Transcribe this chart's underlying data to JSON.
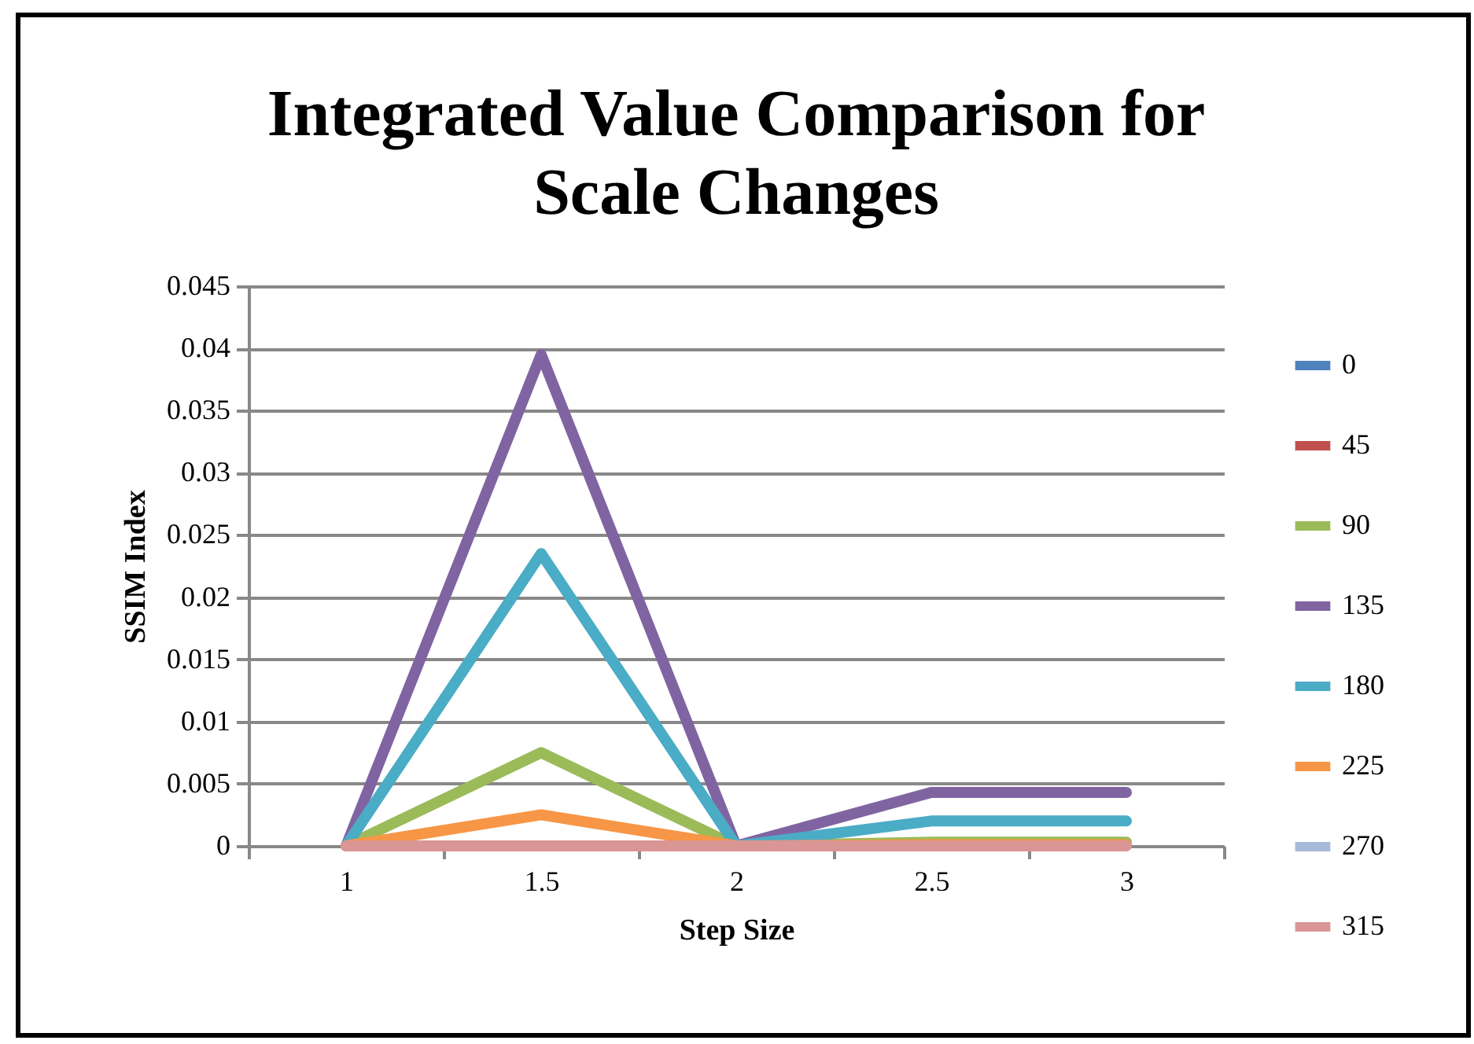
{
  "chart_data": {
    "type": "line",
    "title": "Integrated Value Comparison for Scale Changes",
    "xlabel": "Step Size",
    "ylabel": "SSIM Index",
    "categories": [
      "1",
      "1.5",
      "2",
      "2.5",
      "3"
    ],
    "ylim": [
      0,
      0.045
    ],
    "yticks": [
      0,
      0.005,
      0.01,
      0.015,
      0.02,
      0.025,
      0.03,
      0.035,
      0.04,
      0.045
    ],
    "grid": "y",
    "legend": "right",
    "marker": "none",
    "line_style": "solid",
    "series": [
      {
        "name": "0",
        "color": "#4f81bd",
        "values": [
          null,
          null,
          null,
          null,
          null
        ]
      },
      {
        "name": "45",
        "color": "#c0504d",
        "values": [
          null,
          null,
          null,
          null,
          null
        ]
      },
      {
        "name": "90",
        "color": "#9bbb59",
        "values": [
          0,
          0.0075,
          0,
          0.0003,
          0.0003
        ]
      },
      {
        "name": "135",
        "color": "#8064a2",
        "values": [
          0,
          0.0395,
          0,
          0.0043,
          0.0043
        ]
      },
      {
        "name": "180",
        "color": "#4bacc6",
        "values": [
          0,
          0.0235,
          0,
          0.002,
          0.002
        ]
      },
      {
        "name": "225",
        "color": "#f79646",
        "values": [
          0,
          0.0025,
          0,
          0.0001,
          0.0001
        ]
      },
      {
        "name": "270",
        "color": "#a5bbd9",
        "values": [
          null,
          null,
          null,
          null,
          null
        ]
      },
      {
        "name": "315",
        "color": "#d99694",
        "values": [
          0,
          0,
          0,
          0,
          0
        ]
      }
    ]
  }
}
